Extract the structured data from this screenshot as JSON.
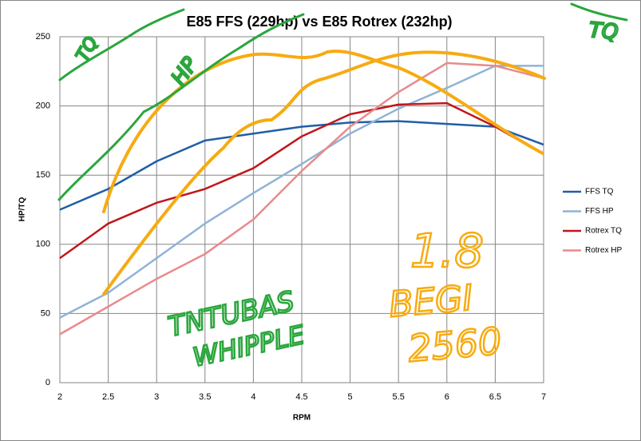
{
  "chart_data": {
    "type": "line",
    "title": "E85 FFS (229hp) vs E85 Rotrex (232hp)",
    "x_label": "RPM",
    "y_label": "HP/TQ",
    "x": [
      2,
      2.5,
      3,
      3.5,
      4,
      4.5,
      5,
      5.5,
      6,
      6.5,
      7
    ],
    "series": [
      {
        "name": "FFS TQ",
        "color": "#1f5fa6",
        "values": [
          125,
          140,
          160,
          175,
          180,
          185,
          188,
          189,
          187,
          185,
          172
        ]
      },
      {
        "name": "FFS HP",
        "color": "#8fb3d6",
        "values": [
          47,
          65,
          90,
          115,
          137,
          158,
          180,
          198,
          213,
          229,
          229
        ]
      },
      {
        "name": "Rotrex TQ",
        "color": "#c0171c",
        "values": [
          90,
          115,
          130,
          140,
          155,
          178,
          194,
          201,
          202,
          185,
          165
        ]
      },
      {
        "name": "Rotrex HP",
        "color": "#e98a8c",
        "values": [
          35,
          55,
          75,
          93,
          118,
          153,
          185,
          210,
          231,
          229,
          220
        ]
      }
    ],
    "xlim": [
      2,
      7
    ],
    "xticks": [
      2,
      2.5,
      3,
      3.5,
      4,
      4.5,
      5,
      5.5,
      6,
      6.5,
      7
    ],
    "ylim": [
      0,
      250
    ],
    "yticks": [
      0,
      50,
      100,
      150,
      200,
      250
    ],
    "grid": true,
    "legend": "right",
    "annotations": [
      {
        "text": "TQ",
        "color": "#2aa63c"
      },
      {
        "text": "HP",
        "color": "#2aa63c"
      },
      {
        "text": "TQ",
        "color": "#2aa63c"
      },
      {
        "text": "TNTUBAS",
        "color": "#2aa63c"
      },
      {
        "text": "WHIPPLE",
        "color": "#2aa63c"
      },
      {
        "text": "1.8",
        "color": "#f7ab10"
      },
      {
        "text": "BEGI",
        "color": "#f7ab10"
      },
      {
        "text": "2560",
        "color": "#f7ab10"
      }
    ]
  }
}
